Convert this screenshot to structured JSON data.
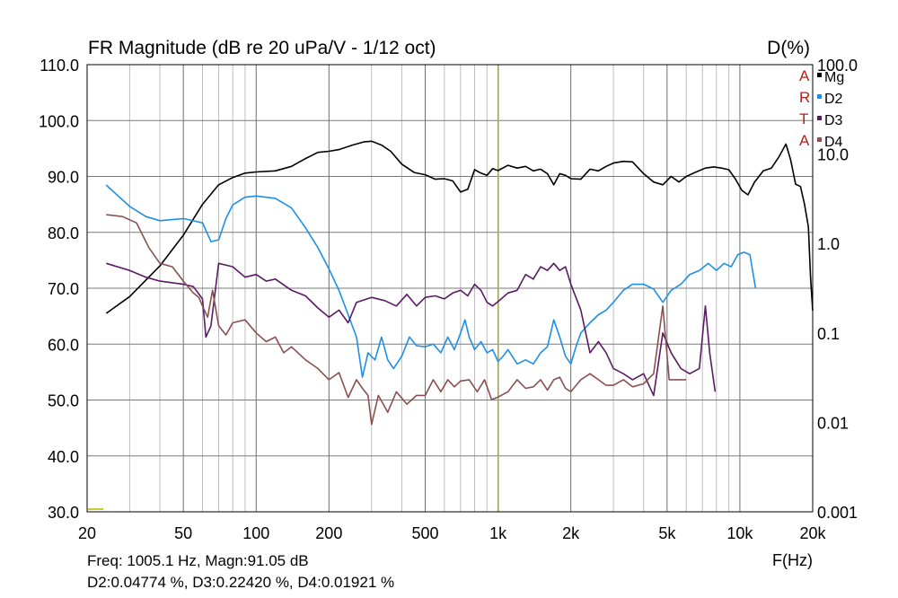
{
  "header": {
    "title": "FR Magnitude (dB re 20 uPa/V - 1/12 oct)",
    "right_axis_title": "D(%)"
  },
  "branding": {
    "letters": [
      "A",
      "R",
      "T",
      "A"
    ],
    "color": "#b8221b"
  },
  "footer": {
    "x_axis_unit": "F(Hz)",
    "readout_line1": "Freq: 1005.1 Hz, Magn:91.05 dB",
    "readout_line2": "D2:0.04774 %, D3:0.22420 %, D4:0.01921 %"
  },
  "chart_data": {
    "type": "line",
    "x_scale": "log",
    "xlim": [
      20,
      20000
    ],
    "ylim": [
      30,
      110
    ],
    "y_right_scale": "log",
    "y_right_lim": [
      0.001,
      100
    ],
    "grid": true,
    "cursor_x": 1005.1,
    "cursor_color": "#c8c832",
    "x_ticks": [
      {
        "value": 20,
        "label": "20"
      },
      {
        "value": 50,
        "label": "50"
      },
      {
        "value": 100,
        "label": "100"
      },
      {
        "value": 200,
        "label": "200"
      },
      {
        "value": 500,
        "label": "500"
      },
      {
        "value": 1000,
        "label": "1k"
      },
      {
        "value": 2000,
        "label": "2k"
      },
      {
        "value": 5000,
        "label": "5k"
      },
      {
        "value": 10000,
        "label": "10k"
      },
      {
        "value": 20000,
        "label": "20k"
      }
    ],
    "y_ticks": [
      "30.0",
      "40.0",
      "50.0",
      "60.0",
      "70.0",
      "80.0",
      "90.0",
      "100.0",
      "110.0"
    ],
    "y_right_ticks": [
      {
        "value": 0.001,
        "label": "0.001"
      },
      {
        "value": 0.01,
        "label": "0.01"
      },
      {
        "value": 0.1,
        "label": "0.1"
      },
      {
        "value": 1,
        "label": "1.0"
      },
      {
        "value": 10,
        "label": "10.0"
      },
      {
        "value": 100,
        "label": "100.0"
      }
    ],
    "series": [
      {
        "name": "Mg",
        "color": "#000000",
        "points": [
          [
            24,
            65.5
          ],
          [
            30,
            68.5
          ],
          [
            40,
            74
          ],
          [
            50,
            79.5
          ],
          [
            60,
            85
          ],
          [
            70,
            88.5
          ],
          [
            80,
            89.8
          ],
          [
            90,
            90.6
          ],
          [
            100,
            90.8
          ],
          [
            120,
            91
          ],
          [
            140,
            91.8
          ],
          [
            160,
            93.2
          ],
          [
            180,
            94.3
          ],
          [
            200,
            94.5
          ],
          [
            220,
            94.8
          ],
          [
            250,
            95.6
          ],
          [
            280,
            96.2
          ],
          [
            300,
            96.3
          ],
          [
            330,
            95.6
          ],
          [
            360,
            94.5
          ],
          [
            400,
            92.2
          ],
          [
            450,
            90.7
          ],
          [
            500,
            90.3
          ],
          [
            550,
            89.5
          ],
          [
            600,
            89.6
          ],
          [
            650,
            89.2
          ],
          [
            700,
            87.2
          ],
          [
            750,
            87.7
          ],
          [
            800,
            91.2
          ],
          [
            850,
            90.6
          ],
          [
            900,
            90.2
          ],
          [
            950,
            91.4
          ],
          [
            1000,
            91.05
          ],
          [
            1100,
            92
          ],
          [
            1200,
            91.5
          ],
          [
            1300,
            91.8
          ],
          [
            1400,
            91
          ],
          [
            1500,
            91.3
          ],
          [
            1600,
            90.5
          ],
          [
            1700,
            88.5
          ],
          [
            1800,
            90.5
          ],
          [
            1900,
            90.2
          ],
          [
            2000,
            89.6
          ],
          [
            2200,
            89.5
          ],
          [
            2400,
            91.3
          ],
          [
            2600,
            91
          ],
          [
            2800,
            91.8
          ],
          [
            3000,
            92.4
          ],
          [
            3300,
            92.7
          ],
          [
            3600,
            92.6
          ],
          [
            4000,
            90.5
          ],
          [
            4400,
            89
          ],
          [
            4800,
            88.5
          ],
          [
            5200,
            90
          ],
          [
            5600,
            89
          ],
          [
            6000,
            90
          ],
          [
            6600,
            90.8
          ],
          [
            7200,
            91.5
          ],
          [
            7800,
            91.7
          ],
          [
            8400,
            91.5
          ],
          [
            9000,
            91.2
          ],
          [
            9600,
            89.5
          ],
          [
            10200,
            87.5
          ],
          [
            10800,
            86.7
          ],
          [
            11500,
            89
          ],
          [
            12500,
            91
          ],
          [
            13500,
            91.5
          ],
          [
            14500,
            93.5
          ],
          [
            15500,
            95.8
          ],
          [
            16200,
            93
          ],
          [
            17000,
            88.6
          ],
          [
            17800,
            88.2
          ],
          [
            18500,
            85
          ],
          [
            19200,
            81
          ],
          [
            19600,
            72
          ],
          [
            20000,
            66
          ]
        ]
      },
      {
        "name": "D2",
        "color": "#1e8fe6",
        "points": [
          [
            24,
            4.5
          ],
          [
            30,
            2.6
          ],
          [
            35,
            2.0
          ],
          [
            40,
            1.8
          ],
          [
            50,
            1.9
          ],
          [
            60,
            1.7
          ],
          [
            65,
            1.05
          ],
          [
            70,
            1.1
          ],
          [
            75,
            1.9
          ],
          [
            80,
            2.7
          ],
          [
            90,
            3.3
          ],
          [
            100,
            3.4
          ],
          [
            120,
            3.2
          ],
          [
            140,
            2.5
          ],
          [
            160,
            1.5
          ],
          [
            180,
            0.9
          ],
          [
            200,
            0.52
          ],
          [
            220,
            0.3
          ],
          [
            240,
            0.16
          ],
          [
            260,
            0.09
          ],
          [
            275,
            0.032
          ],
          [
            290,
            0.06
          ],
          [
            310,
            0.05
          ],
          [
            330,
            0.09
          ],
          [
            350,
            0.05
          ],
          [
            370,
            0.04
          ],
          [
            400,
            0.055
          ],
          [
            430,
            0.09
          ],
          [
            460,
            0.072
          ],
          [
            500,
            0.07
          ],
          [
            540,
            0.075
          ],
          [
            580,
            0.06
          ],
          [
            620,
            0.09
          ],
          [
            660,
            0.065
          ],
          [
            700,
            0.1
          ],
          [
            730,
            0.14
          ],
          [
            760,
            0.09
          ],
          [
            800,
            0.065
          ],
          [
            850,
            0.08
          ],
          [
            900,
            0.06
          ],
          [
            950,
            0.065
          ],
          [
            1000,
            0.048
          ],
          [
            1050,
            0.055
          ],
          [
            1100,
            0.065
          ],
          [
            1200,
            0.045
          ],
          [
            1300,
            0.05
          ],
          [
            1400,
            0.045
          ],
          [
            1500,
            0.06
          ],
          [
            1600,
            0.07
          ],
          [
            1700,
            0.14
          ],
          [
            1800,
            0.09
          ],
          [
            1900,
            0.055
          ],
          [
            2000,
            0.045
          ],
          [
            2100,
            0.07
          ],
          [
            2200,
            0.1
          ],
          [
            2400,
            0.13
          ],
          [
            2600,
            0.16
          ],
          [
            2800,
            0.18
          ],
          [
            3000,
            0.22
          ],
          [
            3300,
            0.3
          ],
          [
            3600,
            0.35
          ],
          [
            4000,
            0.35
          ],
          [
            4400,
            0.31
          ],
          [
            4800,
            0.22
          ],
          [
            5200,
            0.3
          ],
          [
            5700,
            0.35
          ],
          [
            6200,
            0.45
          ],
          [
            6800,
            0.5
          ],
          [
            7400,
            0.6
          ],
          [
            8000,
            0.5
          ],
          [
            8600,
            0.6
          ],
          [
            9200,
            0.55
          ],
          [
            9800,
            0.75
          ],
          [
            10400,
            0.8
          ],
          [
            11000,
            0.75
          ],
          [
            11600,
            0.32
          ]
        ]
      },
      {
        "name": "D3",
        "color": "#5a1a64",
        "points": [
          [
            24,
            0.6
          ],
          [
            30,
            0.5
          ],
          [
            35,
            0.42
          ],
          [
            40,
            0.38
          ],
          [
            50,
            0.35
          ],
          [
            55,
            0.33
          ],
          [
            60,
            0.24
          ],
          [
            62,
            0.09
          ],
          [
            65,
            0.12
          ],
          [
            70,
            0.6
          ],
          [
            80,
            0.55
          ],
          [
            90,
            0.42
          ],
          [
            100,
            0.45
          ],
          [
            110,
            0.38
          ],
          [
            120,
            0.4
          ],
          [
            140,
            0.3
          ],
          [
            160,
            0.26
          ],
          [
            180,
            0.19
          ],
          [
            200,
            0.15
          ],
          [
            220,
            0.18
          ],
          [
            240,
            0.13
          ],
          [
            260,
            0.22
          ],
          [
            300,
            0.25
          ],
          [
            340,
            0.23
          ],
          [
            380,
            0.2
          ],
          [
            420,
            0.27
          ],
          [
            460,
            0.2
          ],
          [
            500,
            0.25
          ],
          [
            550,
            0.26
          ],
          [
            600,
            0.24
          ],
          [
            650,
            0.28
          ],
          [
            700,
            0.3
          ],
          [
            750,
            0.26
          ],
          [
            800,
            0.35
          ],
          [
            850,
            0.3
          ],
          [
            900,
            0.22
          ],
          [
            950,
            0.2
          ],
          [
            1000,
            0.224
          ],
          [
            1100,
            0.28
          ],
          [
            1200,
            0.3
          ],
          [
            1300,
            0.45
          ],
          [
            1400,
            0.4
          ],
          [
            1500,
            0.55
          ],
          [
            1600,
            0.5
          ],
          [
            1700,
            0.6
          ],
          [
            1800,
            0.5
          ],
          [
            1900,
            0.55
          ],
          [
            2000,
            0.35
          ],
          [
            2200,
            0.18
          ],
          [
            2400,
            0.06
          ],
          [
            2600,
            0.08
          ],
          [
            2800,
            0.06
          ],
          [
            3000,
            0.04
          ],
          [
            3300,
            0.035
          ],
          [
            3600,
            0.03
          ],
          [
            4000,
            0.035
          ],
          [
            4400,
            0.02
          ],
          [
            4800,
            0.1
          ],
          [
            5200,
            0.06
          ],
          [
            5700,
            0.04
          ],
          [
            6200,
            0.035
          ],
          [
            6800,
            0.04
          ],
          [
            7200,
            0.2
          ],
          [
            7500,
            0.06
          ],
          [
            7900,
            0.022
          ]
        ]
      },
      {
        "name": "D4",
        "color": "#8a5050",
        "points": [
          [
            24,
            2.1
          ],
          [
            28,
            2.0
          ],
          [
            32,
            1.7
          ],
          [
            36,
            0.9
          ],
          [
            40,
            0.6
          ],
          [
            45,
            0.55
          ],
          [
            50,
            0.38
          ],
          [
            55,
            0.28
          ],
          [
            58,
            0.25
          ],
          [
            60,
            0.2
          ],
          [
            63,
            0.15
          ],
          [
            66,
            0.3
          ],
          [
            70,
            0.12
          ],
          [
            75,
            0.095
          ],
          [
            80,
            0.13
          ],
          [
            90,
            0.14
          ],
          [
            100,
            0.1
          ],
          [
            110,
            0.08
          ],
          [
            120,
            0.09
          ],
          [
            130,
            0.06
          ],
          [
            140,
            0.07
          ],
          [
            160,
            0.05
          ],
          [
            180,
            0.04
          ],
          [
            200,
            0.03
          ],
          [
            220,
            0.036
          ],
          [
            240,
            0.019
          ],
          [
            260,
            0.03
          ],
          [
            275,
            0.024
          ],
          [
            290,
            0.02
          ],
          [
            300,
            0.0095
          ],
          [
            320,
            0.02
          ],
          [
            350,
            0.013
          ],
          [
            380,
            0.022
          ],
          [
            420,
            0.016
          ],
          [
            460,
            0.02
          ],
          [
            500,
            0.02
          ],
          [
            540,
            0.03
          ],
          [
            580,
            0.022
          ],
          [
            620,
            0.03
          ],
          [
            660,
            0.025
          ],
          [
            700,
            0.029
          ],
          [
            760,
            0.03
          ],
          [
            820,
            0.022
          ],
          [
            880,
            0.03
          ],
          [
            940,
            0.018
          ],
          [
            1000,
            0.0192
          ],
          [
            1100,
            0.022
          ],
          [
            1200,
            0.03
          ],
          [
            1300,
            0.024
          ],
          [
            1400,
            0.025
          ],
          [
            1500,
            0.03
          ],
          [
            1600,
            0.023
          ],
          [
            1700,
            0.03
          ],
          [
            1800,
            0.032
          ],
          [
            1900,
            0.024
          ],
          [
            2000,
            0.022
          ],
          [
            2200,
            0.03
          ],
          [
            2400,
            0.035
          ],
          [
            2600,
            0.03
          ],
          [
            2800,
            0.026
          ],
          [
            3000,
            0.026
          ],
          [
            3300,
            0.03
          ],
          [
            3600,
            0.025
          ],
          [
            4000,
            0.027
          ],
          [
            4400,
            0.035
          ],
          [
            4800,
            0.2
          ],
          [
            5100,
            0.03
          ],
          [
            5500,
            0.03
          ],
          [
            6000,
            0.03
          ]
        ]
      }
    ]
  }
}
